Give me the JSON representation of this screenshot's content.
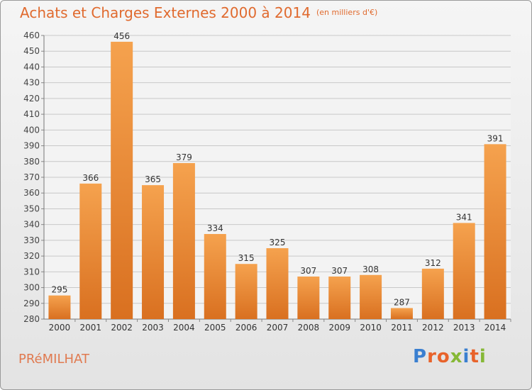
{
  "title": "Achats et Charges Externes 2000 à 2014",
  "unit": "(en milliers d'€)",
  "town": "PRéMILHAT",
  "logo": {
    "text": "Proxiti",
    "colors": [
      "#3a7fd0",
      "#e8632b",
      "#e8632b",
      "#86b836",
      "#3a7fd0",
      "#e8632b",
      "#86b836"
    ]
  },
  "colors": {
    "title": "#e06a2e",
    "bar_light": "#f5a24e",
    "bar_dark": "#d97020",
    "grid": "#c8c8c8"
  },
  "chart_data": {
    "type": "bar",
    "categories": [
      "2000",
      "2001",
      "2002",
      "2003",
      "2004",
      "2005",
      "2006",
      "2007",
      "2008",
      "2009",
      "2010",
      "2011",
      "2012",
      "2013",
      "2014"
    ],
    "values": [
      295,
      366,
      456,
      365,
      379,
      334,
      315,
      325,
      307,
      307,
      308,
      287,
      312,
      341,
      391
    ],
    "ylim": [
      280,
      460
    ],
    "yticks": [
      280,
      290,
      300,
      310,
      320,
      330,
      340,
      350,
      360,
      370,
      380,
      390,
      400,
      410,
      420,
      430,
      440,
      450,
      460
    ],
    "grid": true,
    "data_labels": true
  }
}
